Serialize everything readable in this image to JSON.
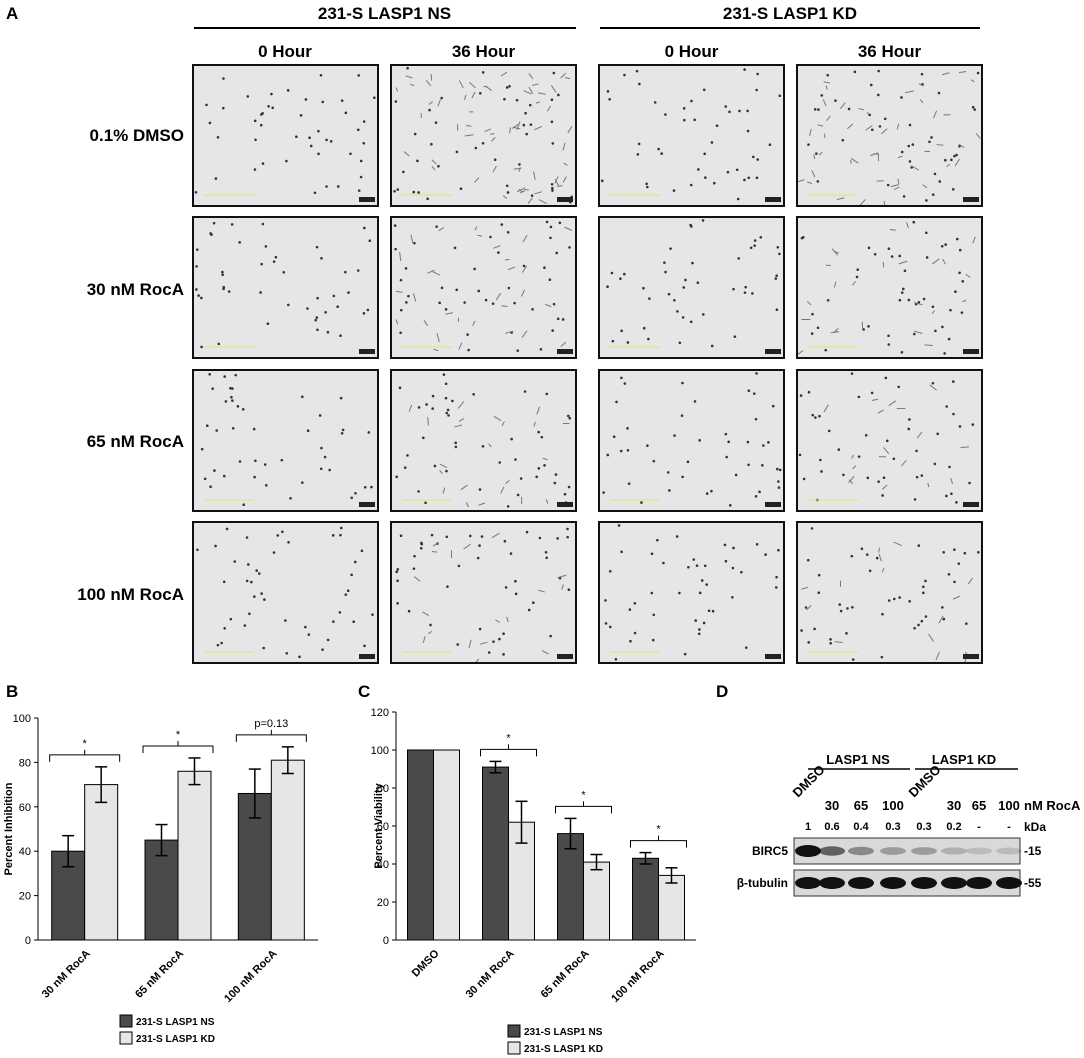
{
  "panel_labels": {
    "A": "A",
    "B": "B",
    "C": "C",
    "D": "D"
  },
  "panel_a": {
    "groups": [
      "231-S LASP1 NS",
      "231-S LASP1 KD"
    ],
    "time_headers": [
      "0 Hour",
      "36 Hour",
      "0 Hour",
      "36 Hour"
    ],
    "rows": [
      "0.1% DMSO",
      "30 nM RocA",
      "65 nM RocA",
      "100 nM RocA"
    ]
  },
  "chart_data": [
    {
      "type": "bar",
      "panel": "B",
      "categories": [
        "30 nM RocA",
        "65 nM RocA",
        "100 nM RocA"
      ],
      "series": [
        {
          "name": "231-S LASP1 NS",
          "values": [
            40,
            45,
            66
          ],
          "errors": [
            7,
            7,
            11
          ],
          "color": "#4a4a4a"
        },
        {
          "name": "231-S LASP1 KD",
          "values": [
            70,
            76,
            81
          ],
          "errors": [
            8,
            6,
            6
          ],
          "color": "#e6e6e6"
        }
      ],
      "ylabel": "Percent Inhibition",
      "ylim": [
        0,
        100
      ],
      "yticks": [
        0,
        20,
        40,
        60,
        80,
        100
      ],
      "annotations": [
        "*",
        "*",
        "p=0.13"
      ],
      "legend": "bottom"
    },
    {
      "type": "bar",
      "panel": "C",
      "categories": [
        "DMSO",
        "30 nM RocA",
        "65 nM RocA",
        "100 nM RocA"
      ],
      "series": [
        {
          "name": "231-S LASP1 NS",
          "values": [
            100,
            91,
            56,
            43
          ],
          "errors": [
            0,
            3,
            8,
            3
          ],
          "color": "#4a4a4a"
        },
        {
          "name": "231-S LASP1 KD",
          "values": [
            100,
            62,
            41,
            34
          ],
          "errors": [
            0,
            11,
            4,
            4
          ],
          "color": "#e6e6e6"
        }
      ],
      "ylabel": "Percent Viability",
      "ylim": [
        0,
        120
      ],
      "yticks": [
        0,
        20,
        40,
        60,
        80,
        100,
        120
      ],
      "annotations": [
        "",
        "*",
        "*",
        "*"
      ],
      "legend": "bottom"
    }
  ],
  "panel_d": {
    "groups": [
      "LASP1 NS",
      "LASP1 KD"
    ],
    "lanes": [
      "DMSO",
      "30",
      "65",
      "100",
      "DMSO",
      "30",
      "65",
      "100"
    ],
    "unit_label": "nM RocA",
    "quant": [
      "1",
      "0.6",
      "0.4",
      "0.3",
      "0.3",
      "0.2",
      "-",
      "-"
    ],
    "kda_label": "kDa",
    "bands": [
      {
        "name": "BIRC5",
        "kda": "-15",
        "intensities": [
          1,
          0.6,
          0.4,
          0.3,
          0.3,
          0.2,
          0.05,
          0.02
        ]
      },
      {
        "name": "β-tubulin",
        "kda": "-55",
        "intensities": [
          1,
          1,
          1,
          1,
          1,
          1,
          1,
          1
        ]
      }
    ]
  }
}
